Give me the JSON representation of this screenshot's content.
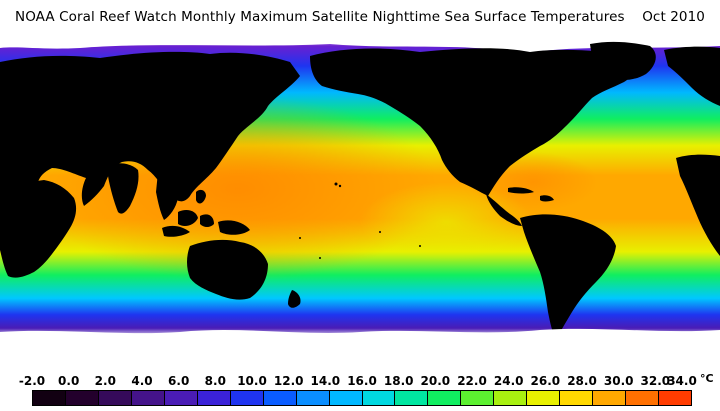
{
  "title": "NOAA Coral Reef Watch Monthly Maximum Satellite Nighttime Sea Surface Temperatures    Oct 2010",
  "legend": {
    "labels": [
      "-2.0",
      "0.0",
      "2.0",
      "4.0",
      "6.0",
      "8.0",
      "10.0",
      "12.0",
      "14.0",
      "16.0",
      "18.0",
      "20.0",
      "22.0",
      "24.0",
      "26.0",
      "28.0",
      "30.0",
      "32.0",
      "34.0"
    ],
    "unit": "°C",
    "colors": [
      "#120012",
      "#23002c",
      "#350a5a",
      "#44138a",
      "#4a1cb5",
      "#3b22d8",
      "#1f34f0",
      "#0a5cff",
      "#0a8eff",
      "#00b8ff",
      "#00d8e0",
      "#00e6a0",
      "#10ee60",
      "#5cf030",
      "#a8f010",
      "#e8f000",
      "#ffd800",
      "#ffa800",
      "#ff7000",
      "#ff3c00"
    ]
  },
  "map": {
    "ocean_colors": {
      "polar": "#4a1cb5",
      "subpolar": "#0a8eff",
      "temperate": "#10ee60",
      "subtropical": "#e8f000",
      "tropical": "#ff9a10",
      "warm_pool": "#ff7000"
    },
    "land_color": "#000000",
    "ice_color": "#ffffff"
  }
}
